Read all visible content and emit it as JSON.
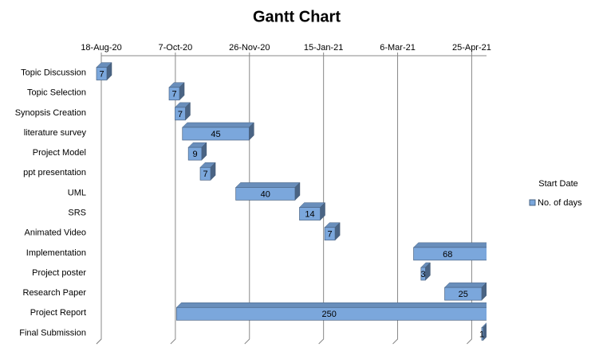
{
  "chart_data": {
    "type": "gantt",
    "title": "Gantt Chart",
    "categories": [
      "Topic Discussion",
      "Topic Selection",
      "Synopsis Creation",
      "literature survey",
      "Project Model",
      "ppt presentation",
      "UML",
      "SRS",
      "Animated Video",
      "Implementation",
      "Project poster",
      "Research Paper",
      "Project Report",
      "Final Submission"
    ],
    "series": [
      {
        "name": "Start Date",
        "color": null,
        "values": [
          44061,
          44110,
          44114,
          44119,
          44123,
          44131,
          44155,
          44198,
          44215,
          44275,
          44280,
          44296,
          44115,
          44321
        ]
      },
      {
        "name": "No. of days",
        "color": "#7ba7dc",
        "values": [
          7,
          7,
          7,
          45,
          9,
          7,
          40,
          14,
          7,
          68,
          3,
          25,
          250,
          1
        ]
      }
    ],
    "xlim": [
      44061,
      44321
    ],
    "xticks": [
      {
        "value": 44061,
        "label": "18-Aug-20"
      },
      {
        "value": 44111,
        "label": "7-Oct-20"
      },
      {
        "value": 44161,
        "label": "26-Nov-20"
      },
      {
        "value": 44211,
        "label": "15-Jan-21"
      },
      {
        "value": 44261,
        "label": "6-Mar-21"
      },
      {
        "value": 44311,
        "label": "25-Apr-21"
      }
    ],
    "grid": true,
    "legend": "right"
  }
}
